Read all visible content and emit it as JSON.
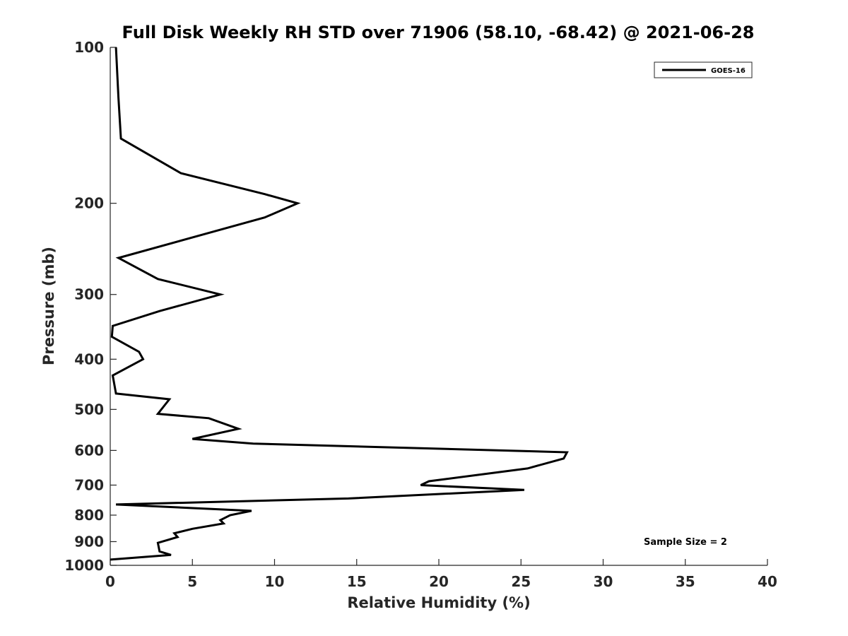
{
  "chart_data": {
    "type": "line",
    "title": "Full Disk Weekly RH STD over 71906 (58.10, -68.42) @ 2021-06-28",
    "xlabel": "Relative Humidity (%)",
    "ylabel": "Pressure (mb)",
    "xlim": [
      0,
      40
    ],
    "ylim": [
      100,
      1000
    ],
    "y_scale": "log",
    "y_reversed": true,
    "grid": false,
    "x_ticks": [
      0,
      5,
      10,
      15,
      20,
      25,
      30,
      35,
      40
    ],
    "x_tick_labels": [
      "0",
      "5",
      "10",
      "15",
      "20",
      "25",
      "30",
      "35",
      "40"
    ],
    "y_ticks": [
      100,
      200,
      300,
      400,
      500,
      600,
      700,
      800,
      900,
      1000
    ],
    "y_tick_labels": [
      "100",
      "200",
      "300",
      "400",
      "500",
      "600",
      "700",
      "800",
      "900",
      "1000"
    ],
    "legend_position": "top-right",
    "annotation": "Sample Size = 2",
    "series": [
      {
        "name": "GOES-16",
        "color": "#000000",
        "points": [
          [
            0.35,
            100
          ],
          [
            0.5,
            125
          ],
          [
            0.65,
            150
          ],
          [
            4.3,
            175
          ],
          [
            9.4,
            192
          ],
          [
            11.4,
            200
          ],
          [
            9.4,
            213
          ],
          [
            6.7,
            225
          ],
          [
            0.5,
            255
          ],
          [
            2.9,
            280
          ],
          [
            6.7,
            300
          ],
          [
            3.0,
            323
          ],
          [
            0.15,
            345
          ],
          [
            0.1,
            362
          ],
          [
            1.75,
            387
          ],
          [
            2.0,
            400
          ],
          [
            0.15,
            430
          ],
          [
            0.35,
            466
          ],
          [
            3.6,
            478
          ],
          [
            2.9,
            510
          ],
          [
            6.0,
            520
          ],
          [
            7.8,
            545
          ],
          [
            5.0,
            570
          ],
          [
            8.7,
            582
          ],
          [
            27.8,
            605
          ],
          [
            27.6,
            622
          ],
          [
            25.4,
            650
          ],
          [
            19.4,
            688
          ],
          [
            18.9,
            700
          ],
          [
            25.2,
            715
          ],
          [
            14.5,
            743
          ],
          [
            0.35,
            763
          ],
          [
            8.6,
            785
          ],
          [
            7.3,
            800
          ],
          [
            6.7,
            818
          ],
          [
            6.9,
            830
          ],
          [
            5.0,
            850
          ],
          [
            3.9,
            867
          ],
          [
            4.1,
            882
          ],
          [
            2.9,
            905
          ],
          [
            3.0,
            940
          ],
          [
            3.7,
            955
          ],
          [
            0.0,
            975
          ]
        ]
      }
    ]
  }
}
